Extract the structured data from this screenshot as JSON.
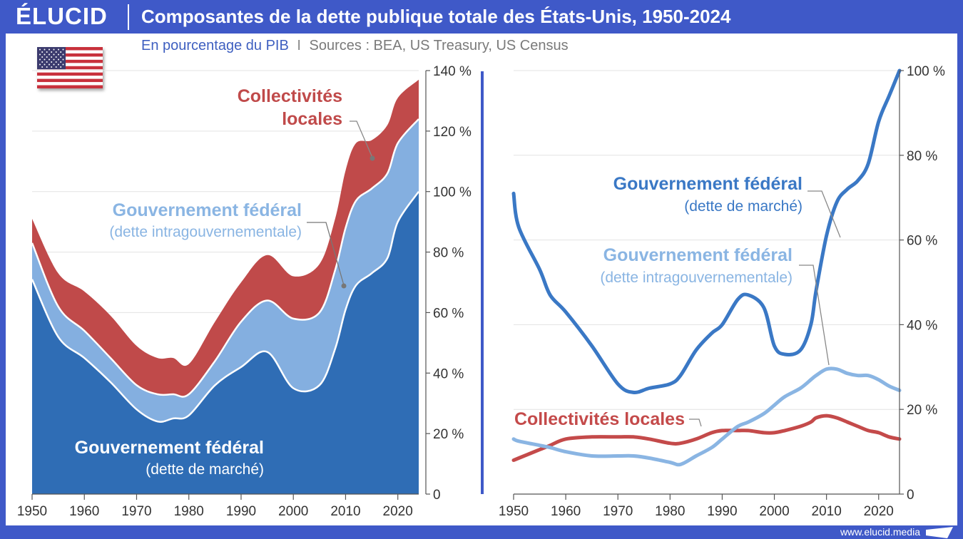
{
  "brand": "ÉLUCID",
  "title": "Composantes de la dette publique totale des États-Unis, 1950-2024",
  "subtitle": {
    "unit": "En pourcentage du PIB",
    "separator": "I",
    "sources": "Sources : BEA, US Treasury, US Census"
  },
  "footer": {
    "url": "www.elucid.media"
  },
  "flag": {
    "country": "États-Unis",
    "icon": "us-flag-icon"
  },
  "colors": {
    "background": "#3f59c8",
    "marche_area": "#2f6db5",
    "intra_area": "#84afe0",
    "locales_area": "#c04a4a",
    "marche_line": "#3a78c5",
    "intra_line": "#8ab5e3",
    "locales_line": "#c44a4a"
  },
  "chart_data": [
    {
      "type": "area",
      "stacked": true,
      "x": [
        1950,
        1955,
        1960,
        1965,
        1970,
        1974,
        1977,
        1980,
        1985,
        1990,
        1995,
        2000,
        2005,
        2008,
        2010,
        2012,
        2015,
        2018,
        2020,
        2024
      ],
      "series": [
        {
          "name": "Gouvernement fédéral (dette de marché)",
          "label_line1": "Gouvernement fédéral",
          "label_line2": "(dette de marché)",
          "values": [
            71,
            52,
            45,
            37,
            28,
            24,
            25,
            26,
            36,
            42,
            47,
            35,
            36,
            48,
            61,
            69,
            73,
            78,
            90,
            100
          ]
        },
        {
          "name": "Gouvernement fédéral (dette intragouvernementale)",
          "label_line1": "Gouvernement fédéral",
          "label_line2": "(dette intragouvernementale)",
          "values": [
            12,
            10,
            9,
            8,
            8,
            9,
            8,
            7,
            8,
            15,
            17,
            23,
            24,
            26,
            27,
            28,
            28,
            28,
            26,
            24
          ]
        },
        {
          "name": "Collectivités locales",
          "label_line1": "Collectivités",
          "label_line2": "locales",
          "values": [
            8,
            11,
            13,
            14,
            13,
            12,
            12,
            10,
            13,
            13,
            15,
            14,
            16,
            17,
            19,
            19,
            16,
            16,
            15,
            13
          ]
        }
      ],
      "xticks": [
        "1950",
        "1960",
        "1970",
        "1980",
        "1990",
        "2000",
        "2010",
        "2020"
      ],
      "yticks": [
        "0",
        "20 %",
        "40 %",
        "60 %",
        "80 %",
        "100 %",
        "120 %",
        "140 %"
      ],
      "xlim": [
        1950,
        2024
      ],
      "ylim": [
        0,
        140
      ],
      "grid": true
    },
    {
      "type": "line",
      "x": [
        1950,
        1951,
        1955,
        1957,
        1960,
        1965,
        1970,
        1973,
        1976,
        1980,
        1982,
        1985,
        1988,
        1990,
        1993,
        1995,
        1998,
        2000,
        2002,
        2005,
        2007,
        2008,
        2010,
        2012,
        2014,
        2016,
        2018,
        2020,
        2022,
        2024
      ],
      "series": [
        {
          "name": "Gouvernement fédéral (dette de marché)",
          "label_line1": "Gouvernement fédéral",
          "label_line2": "(dette de marché)",
          "values": [
            71,
            63,
            53,
            47,
            43,
            35,
            26,
            24,
            25,
            26,
            28,
            34,
            38,
            40,
            46,
            47,
            44,
            35,
            33,
            34,
            40,
            48,
            61,
            69,
            72,
            74,
            78,
            88,
            94,
            100
          ]
        },
        {
          "name": "Gouvernement fédéral (dette intragouvernementale)",
          "label_line1": "Gouvernement fédéral",
          "label_line2": "(dette intragouvernementale)",
          "values": [
            13,
            12.5,
            11.5,
            11,
            10,
            9,
            9,
            9,
            8.5,
            7.5,
            7,
            9,
            11,
            13,
            16,
            17,
            19,
            21,
            23,
            25,
            27,
            28,
            29.5,
            29.5,
            28.5,
            28,
            28,
            27,
            25.5,
            24.5
          ]
        },
        {
          "name": "Collectivités locales",
          "label_line1": "Collectivités locales",
          "label_line2": "",
          "values": [
            8,
            8.5,
            10.5,
            11.5,
            13,
            13.5,
            13.5,
            13.5,
            13,
            12,
            12,
            13,
            14.5,
            15,
            15,
            15,
            14.5,
            14.5,
            15,
            16,
            17,
            18,
            18.5,
            18,
            17,
            16,
            15,
            14.5,
            13.5,
            13
          ]
        }
      ],
      "xticks": [
        "1950",
        "1960",
        "1970",
        "1980",
        "1990",
        "2000",
        "2010",
        "2020"
      ],
      "yticks": [
        "0",
        "20 %",
        "40 %",
        "60 %",
        "80 %",
        "100 %"
      ],
      "xlim": [
        1950,
        2024
      ],
      "ylim": [
        0,
        100
      ],
      "grid": true
    }
  ]
}
